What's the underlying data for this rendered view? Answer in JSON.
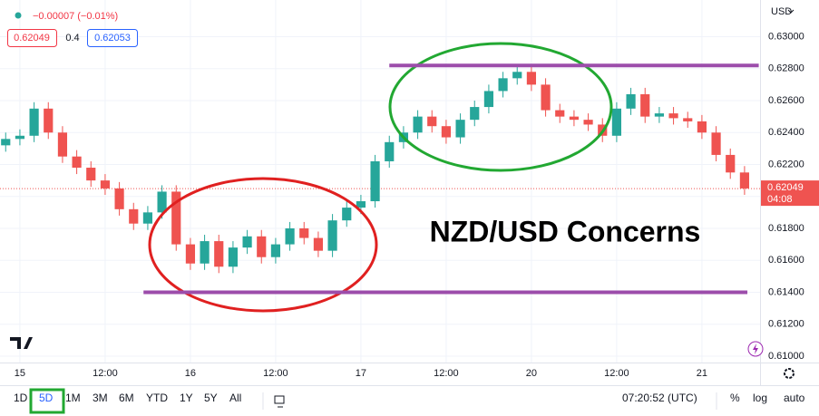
{
  "chart_data": {
    "type": "candlestick",
    "currency": "USD",
    "x": [
      -2,
      0,
      2,
      4,
      6,
      8,
      10,
      12,
      14,
      16,
      18,
      20,
      22,
      24,
      26,
      28,
      30,
      32,
      34,
      36,
      38,
      40,
      42,
      44,
      46,
      48,
      50,
      52,
      54,
      56,
      58,
      60,
      62,
      64,
      66,
      68,
      70,
      72,
      74,
      76,
      78,
      80,
      82,
      84,
      86,
      88,
      90,
      92,
      94,
      96,
      98,
      100,
      102
    ],
    "open": [
      0.6232,
      0.6236,
      0.6238,
      0.6255,
      0.624,
      0.6225,
      0.6218,
      0.621,
      0.6205,
      0.6192,
      0.6183,
      0.619,
      0.6203,
      0.617,
      0.6158,
      0.6172,
      0.6156,
      0.6168,
      0.6175,
      0.6162,
      0.617,
      0.618,
      0.6174,
      0.6166,
      0.6185,
      0.6193,
      0.6197,
      0.6222,
      0.6234,
      0.624,
      0.625,
      0.6244,
      0.6237,
      0.6248,
      0.6256,
      0.6266,
      0.6274,
      0.6278,
      0.627,
      0.6254,
      0.625,
      0.6248,
      0.6245,
      0.6238,
      0.6255,
      0.6264,
      0.625,
      0.6252,
      0.6249,
      0.6247,
      0.624,
      0.6226,
      0.6215
    ],
    "high": [
      0.624,
      0.6242,
      0.6259,
      0.6259,
      0.6244,
      0.6229,
      0.6222,
      0.6214,
      0.6209,
      0.6196,
      0.6194,
      0.6207,
      0.6207,
      0.6174,
      0.6176,
      0.6176,
      0.6172,
      0.6179,
      0.6179,
      0.6174,
      0.6184,
      0.6184,
      0.6178,
      0.6189,
      0.6197,
      0.6201,
      0.6226,
      0.6238,
      0.6244,
      0.6254,
      0.6254,
      0.6248,
      0.6252,
      0.626,
      0.627,
      0.6278,
      0.6282,
      0.6282,
      0.6274,
      0.6258,
      0.6254,
      0.6252,
      0.6249,
      0.6259,
      0.6268,
      0.6268,
      0.6256,
      0.6256,
      0.6253,
      0.6251,
      0.6244,
      0.623,
      0.6219
    ],
    "low": [
      0.6228,
      0.6232,
      0.6234,
      0.6236,
      0.6221,
      0.6214,
      0.6206,
      0.6201,
      0.6188,
      0.6179,
      0.6179,
      0.6186,
      0.6166,
      0.6154,
      0.6154,
      0.6152,
      0.6152,
      0.6164,
      0.6158,
      0.6158,
      0.6166,
      0.617,
      0.6162,
      0.6162,
      0.6181,
      0.6189,
      0.6193,
      0.6218,
      0.623,
      0.6236,
      0.624,
      0.6233,
      0.6233,
      0.6244,
      0.6252,
      0.6262,
      0.627,
      0.6266,
      0.625,
      0.6246,
      0.6244,
      0.6241,
      0.6234,
      0.6234,
      0.6251,
      0.6246,
      0.6246,
      0.6245,
      0.6243,
      0.6236,
      0.6222,
      0.6211,
      0.6201
    ],
    "close": [
      0.6236,
      0.6238,
      0.6255,
      0.624,
      0.6225,
      0.6218,
      0.621,
      0.6205,
      0.6192,
      0.6183,
      0.619,
      0.6203,
      0.617,
      0.6158,
      0.6172,
      0.6156,
      0.6168,
      0.6175,
      0.6162,
      0.617,
      0.618,
      0.6174,
      0.6166,
      0.6185,
      0.6193,
      0.6197,
      0.6222,
      0.6234,
      0.624,
      0.625,
      0.6244,
      0.6237,
      0.6248,
      0.6256,
      0.6266,
      0.6274,
      0.6278,
      0.627,
      0.6254,
      0.625,
      0.6248,
      0.6245,
      0.6238,
      0.6255,
      0.6264,
      0.625,
      0.6252,
      0.6249,
      0.6247,
      0.624,
      0.6226,
      0.6215,
      0.6205
    ],
    "up_color": "#26a69a",
    "down_color": "#ef5350",
    "xlim": [
      -2.8,
      103.8
    ],
    "xticks": [
      {
        "value": 0,
        "label": "15"
      },
      {
        "value": 12,
        "label": "12:00"
      },
      {
        "value": 24,
        "label": "16"
      },
      {
        "value": 36,
        "label": "12:00"
      },
      {
        "value": 48,
        "label": "17"
      },
      {
        "value": 60,
        "label": "12:00"
      },
      {
        "value": 72,
        "label": "20"
      },
      {
        "value": 84,
        "label": "12:00"
      },
      {
        "value": 96,
        "label": "21"
      }
    ],
    "ylim": [
      0.6096,
      0.6323
    ],
    "yticks": [
      {
        "value": 0.61,
        "label": "0.61000"
      },
      {
        "value": 0.612,
        "label": "0.61200"
      },
      {
        "value": 0.614,
        "label": "0.61400"
      },
      {
        "value": 0.616,
        "label": "0.61600"
      },
      {
        "value": 0.618,
        "label": "0.61800"
      },
      {
        "value": 0.62,
        "label": "0.62000"
      },
      {
        "value": 0.622,
        "label": "0.62200"
      },
      {
        "value": 0.624,
        "label": "0.62400"
      },
      {
        "value": 0.626,
        "label": "0.62600"
      },
      {
        "value": 0.628,
        "label": "0.62800"
      },
      {
        "value": 0.63,
        "label": "0.63000"
      }
    ],
    "grid": true,
    "hlines": [
      {
        "value": 0.6282,
        "from": 52,
        "to": 104,
        "color": "#9c4dab"
      },
      {
        "value": 0.614,
        "from": 17.4,
        "to": 102.4,
        "color": "#9c4dab"
      }
    ],
    "last_price": 0.62049,
    "countdown": "04:08",
    "annotation": "NZD/USD Concerns"
  },
  "header": {
    "change": "−0.00007 (−0.01%)",
    "bid": "0.62049",
    "spread": "0.4",
    "ask": "0.62053"
  },
  "toolbar": {
    "ranges": [
      "1D",
      "5D",
      "1M",
      "3M",
      "6M",
      "YTD",
      "1Y",
      "5Y",
      "All"
    ],
    "time": "07:20:52 (UTC)",
    "percent": "%",
    "log": "log",
    "auto": "auto"
  }
}
